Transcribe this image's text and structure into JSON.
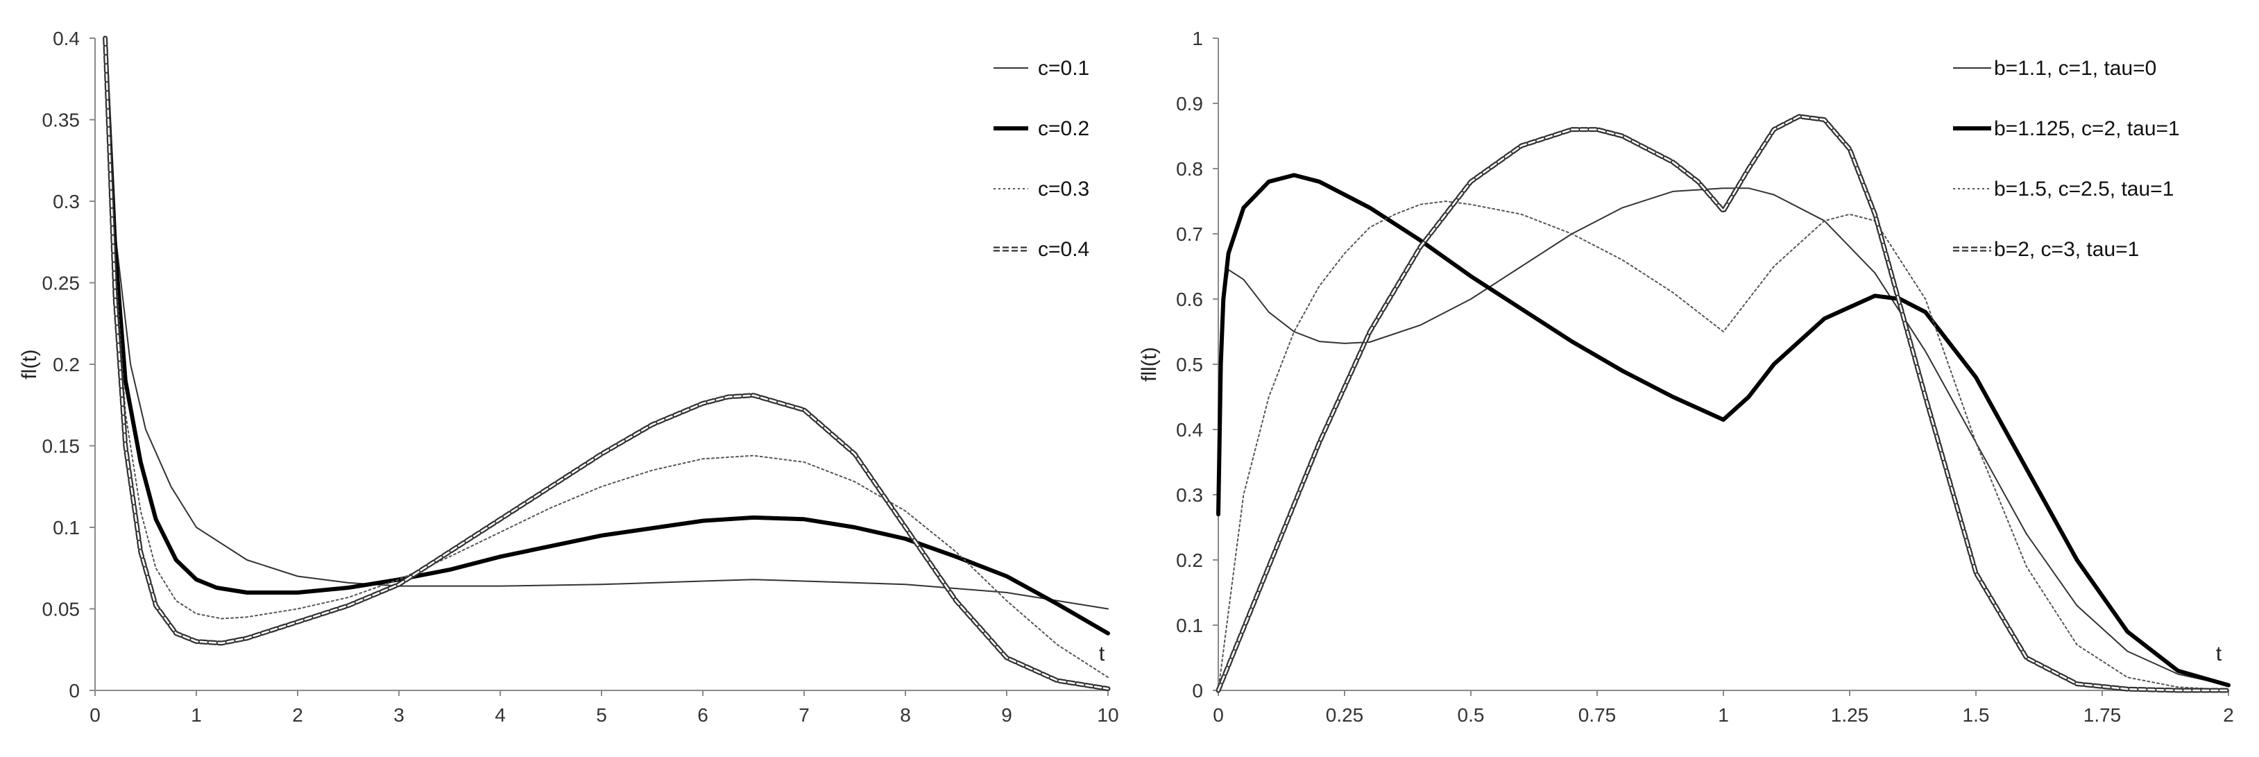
{
  "chart_data": [
    {
      "type": "line",
      "xlabel": "t",
      "ylabel": "fl(t)",
      "xlim": [
        0,
        10
      ],
      "ylim": [
        0,
        0.4
      ],
      "xticks": [
        "0",
        "1",
        "2",
        "3",
        "4",
        "5",
        "6",
        "7",
        "8",
        "9",
        "10"
      ],
      "yticks": [
        "0",
        "0.05",
        "0.1",
        "0.15",
        "0.2",
        "0.25",
        "0.3",
        "0.35",
        "0.4"
      ],
      "grid": false,
      "legend_position": "top-right",
      "series": [
        {
          "name": "c=0.1",
          "style": "thin-solid",
          "x": [
            0.1,
            0.2,
            0.35,
            0.5,
            0.75,
            1,
            1.5,
            2,
            2.5,
            3,
            3.5,
            4,
            5,
            6,
            6.5,
            7,
            8,
            9,
            10
          ],
          "y": [
            0.4,
            0.28,
            0.2,
            0.16,
            0.125,
            0.1,
            0.08,
            0.07,
            0.066,
            0.064,
            0.064,
            0.064,
            0.065,
            0.067,
            0.068,
            0.067,
            0.065,
            0.06,
            0.05
          ]
        },
        {
          "name": "c=0.2",
          "style": "thick-solid",
          "x": [
            0.1,
            0.2,
            0.3,
            0.45,
            0.6,
            0.8,
            1,
            1.2,
            1.5,
            2,
            2.5,
            3,
            3.5,
            4,
            5,
            6,
            6.5,
            7,
            7.5,
            8,
            8.5,
            9,
            9.5,
            10
          ],
          "y": [
            0.4,
            0.27,
            0.19,
            0.14,
            0.105,
            0.08,
            0.068,
            0.063,
            0.06,
            0.06,
            0.063,
            0.068,
            0.074,
            0.082,
            0.095,
            0.104,
            0.106,
            0.105,
            0.1,
            0.093,
            0.082,
            0.07,
            0.053,
            0.035
          ]
        },
        {
          "name": "c=0.3",
          "style": "thin-dotted",
          "x": [
            0.1,
            0.2,
            0.3,
            0.45,
            0.6,
            0.8,
            1,
            1.25,
            1.5,
            2,
            2.5,
            3,
            3.5,
            4,
            4.5,
            5,
            5.5,
            6,
            6.5,
            7,
            7.5,
            8,
            8.5,
            9,
            9.5,
            10
          ],
          "y": [
            0.4,
            0.26,
            0.17,
            0.11,
            0.075,
            0.055,
            0.047,
            0.044,
            0.045,
            0.05,
            0.057,
            0.068,
            0.082,
            0.097,
            0.112,
            0.125,
            0.135,
            0.142,
            0.144,
            0.14,
            0.128,
            0.11,
            0.085,
            0.055,
            0.028,
            0.008
          ]
        },
        {
          "name": "c=0.4",
          "style": "double-dashed",
          "x": [
            0.1,
            0.2,
            0.3,
            0.45,
            0.6,
            0.8,
            1,
            1.25,
            1.5,
            2,
            2.5,
            3,
            3.5,
            4,
            4.5,
            5,
            5.5,
            6,
            6.25,
            6.5,
            7,
            7.5,
            8,
            8.5,
            9,
            9.5,
            10
          ],
          "y": [
            0.4,
            0.24,
            0.15,
            0.085,
            0.052,
            0.035,
            0.03,
            0.029,
            0.032,
            0.042,
            0.052,
            0.065,
            0.085,
            0.105,
            0.125,
            0.145,
            0.163,
            0.176,
            0.18,
            0.181,
            0.172,
            0.145,
            0.1,
            0.055,
            0.02,
            0.006,
            0.001
          ]
        }
      ]
    },
    {
      "type": "line",
      "xlabel": "t",
      "ylabel": "fll(t)",
      "xlim": [
        0,
        2
      ],
      "ylim": [
        0,
        1
      ],
      "xticks": [
        "0",
        "0.25",
        "0.5",
        "0.75",
        "1",
        "1.25",
        "1.5",
        "1.75",
        "2"
      ],
      "yticks": [
        "0",
        "0.1",
        "0.2",
        "0.3",
        "0.4",
        "0.5",
        "0.6",
        "0.7",
        "0.8",
        "0.9",
        "1"
      ],
      "grid": false,
      "legend_position": "top-right",
      "series": [
        {
          "name": "b=1.1, c=1, tau=0",
          "style": "thin-solid",
          "x": [
            0,
            0.01,
            0.02,
            0.05,
            0.1,
            0.15,
            0.2,
            0.25,
            0.3,
            0.4,
            0.5,
            0.6,
            0.7,
            0.8,
            0.9,
            1.0,
            1.05,
            1.1,
            1.2,
            1.3,
            1.4,
            1.5,
            1.6,
            1.7,
            1.8,
            1.9,
            2.0
          ],
          "y": [
            0.27,
            0.6,
            0.645,
            0.63,
            0.58,
            0.55,
            0.535,
            0.532,
            0.534,
            0.56,
            0.6,
            0.65,
            0.7,
            0.74,
            0.765,
            0.77,
            0.77,
            0.76,
            0.72,
            0.64,
            0.52,
            0.38,
            0.24,
            0.13,
            0.06,
            0.025,
            0.008
          ]
        },
        {
          "name": "b=1.125, c=2, tau=1",
          "style": "thick-solid",
          "x": [
            0,
            0.005,
            0.01,
            0.02,
            0.05,
            0.1,
            0.15,
            0.2,
            0.3,
            0.4,
            0.5,
            0.6,
            0.7,
            0.8,
            0.9,
            1.0,
            1.05,
            1.1,
            1.2,
            1.3,
            1.35,
            1.4,
            1.5,
            1.6,
            1.7,
            1.8,
            1.9,
            2.0
          ],
          "y": [
            0.27,
            0.5,
            0.6,
            0.67,
            0.74,
            0.78,
            0.79,
            0.78,
            0.74,
            0.69,
            0.635,
            0.585,
            0.535,
            0.49,
            0.45,
            0.415,
            0.45,
            0.5,
            0.57,
            0.605,
            0.6,
            0.58,
            0.48,
            0.34,
            0.2,
            0.09,
            0.03,
            0.008
          ]
        },
        {
          "name": "b=1.5, c=2.5, tau=1",
          "style": "thin-dotted",
          "x": [
            0,
            0.05,
            0.1,
            0.15,
            0.2,
            0.25,
            0.3,
            0.35,
            0.4,
            0.45,
            0.5,
            0.6,
            0.7,
            0.8,
            0.9,
            1.0,
            1.05,
            1.1,
            1.2,
            1.25,
            1.3,
            1.4,
            1.5,
            1.6,
            1.7,
            1.8,
            1.9,
            2.0
          ],
          "y": [
            0.0,
            0.3,
            0.45,
            0.55,
            0.62,
            0.67,
            0.71,
            0.73,
            0.745,
            0.75,
            0.745,
            0.73,
            0.7,
            0.66,
            0.61,
            0.55,
            0.6,
            0.65,
            0.72,
            0.73,
            0.72,
            0.6,
            0.38,
            0.19,
            0.07,
            0.02,
            0.005,
            0.001
          ]
        },
        {
          "name": "b=2, c=3, tau=1",
          "style": "double-dashed",
          "x": [
            0,
            0.1,
            0.2,
            0.3,
            0.4,
            0.5,
            0.6,
            0.7,
            0.75,
            0.8,
            0.9,
            0.95,
            1.0,
            1.05,
            1.1,
            1.15,
            1.2,
            1.25,
            1.3,
            1.4,
            1.5,
            1.6,
            1.7,
            1.8,
            1.9,
            2.0
          ],
          "y": [
            0.0,
            0.19,
            0.38,
            0.55,
            0.68,
            0.78,
            0.835,
            0.86,
            0.86,
            0.85,
            0.81,
            0.78,
            0.735,
            0.8,
            0.86,
            0.88,
            0.875,
            0.83,
            0.73,
            0.45,
            0.18,
            0.05,
            0.01,
            0.002,
            0.0,
            0.0
          ]
        }
      ]
    }
  ]
}
